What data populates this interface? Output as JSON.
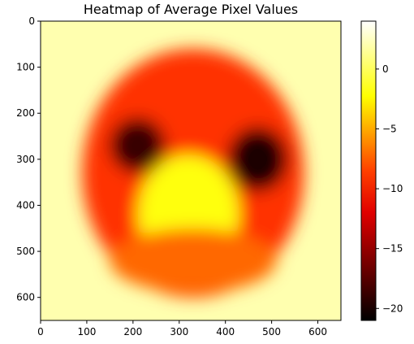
{
  "chart_data": {
    "type": "heatmap",
    "title": "Heatmap of Average Pixel Values",
    "xlabel": "",
    "ylabel": "",
    "xlim": [
      0,
      650
    ],
    "ylim": [
      650,
      0
    ],
    "x_ticks": [
      0,
      100,
      200,
      300,
      400,
      500,
      600
    ],
    "y_ticks": [
      0,
      100,
      200,
      300,
      400,
      500,
      600
    ],
    "colormap": "hot",
    "colorbar": {
      "range": [
        -21,
        4
      ],
      "ticks": [
        0,
        -5,
        -10,
        -15,
        -20
      ],
      "tick_labels": [
        "0",
        "−5",
        "−10",
        "−15",
        "−20"
      ]
    },
    "background_value": 2,
    "regions": [
      {
        "name": "outer-shell",
        "center": [
          330,
          330
        ],
        "radii": [
          240,
          270
        ],
        "value": -10
      },
      {
        "name": "left-dark-lobe",
        "center": [
          210,
          270
        ],
        "radii": [
          60,
          60
        ],
        "value": -19
      },
      {
        "name": "right-dark-lobe",
        "center": [
          470,
          300
        ],
        "radii": [
          65,
          70
        ],
        "value": -20
      },
      {
        "name": "bright-center",
        "center": [
          320,
          420
        ],
        "radii": [
          110,
          130
        ],
        "value": -2
      },
      {
        "name": "lower-region",
        "center": [
          330,
          520
        ],
        "radii": [
          180,
          70
        ],
        "value": -8
      }
    ]
  }
}
